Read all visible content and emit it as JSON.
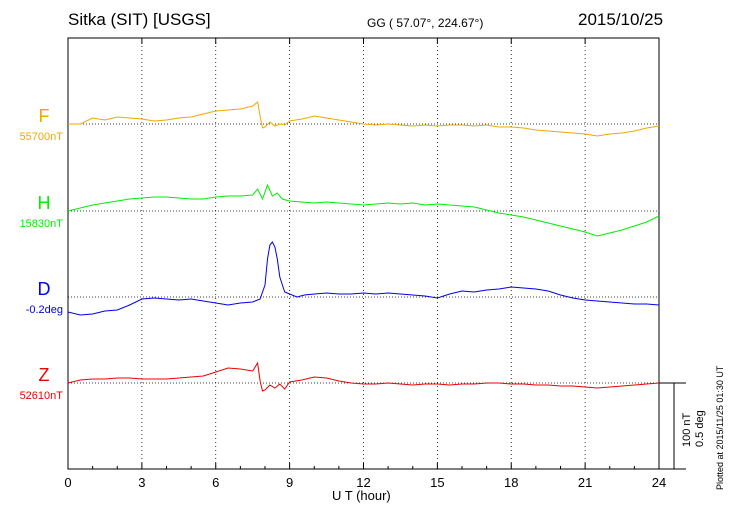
{
  "header": {
    "title": "Sitka (SIT)  [USGS]",
    "coords": "GG ( 57.07°, 224.67°)",
    "date": "2015/10/25"
  },
  "chart_data": {
    "type": "line",
    "xlabel": "U T (hour)",
    "xlim": [
      0,
      24
    ],
    "xticks": [
      0,
      3,
      6,
      9,
      12,
      15,
      18,
      21,
      24
    ],
    "grid": true,
    "scale_bar": {
      "nt_label": "100 nT",
      "deg_label": "0.5 deg"
    },
    "series": [
      {
        "name": "F",
        "baseline_label": "55700nT",
        "color": "#f0a800",
        "x": [
          0,
          0.5,
          1,
          1.5,
          2,
          2.5,
          3,
          3.5,
          4,
          4.5,
          5,
          5.5,
          6,
          6.5,
          7,
          7.5,
          7.7,
          7.8,
          7.9,
          8,
          8.2,
          8.4,
          8.6,
          8.8,
          9,
          9.5,
          10,
          10.5,
          11,
          11.5,
          12,
          12.5,
          13,
          13.5,
          14,
          14.5,
          15,
          15.5,
          16,
          16.5,
          17,
          17.5,
          18,
          18.5,
          19,
          19.5,
          20,
          20.5,
          21,
          21.5,
          22,
          22.5,
          23,
          23.5,
          24
        ],
        "y": [
          0,
          0,
          6,
          4,
          7,
          6,
          5,
          3,
          4,
          6,
          7,
          10,
          13,
          14,
          15,
          18,
          22,
          8,
          -4,
          -3,
          2,
          -2,
          0,
          -1,
          3,
          5,
          8,
          6,
          4,
          2,
          0,
          -1,
          0,
          -1,
          -2,
          -1,
          -2,
          -1,
          -1,
          -2,
          -1,
          -3,
          -3,
          -4,
          -6,
          -7,
          -8,
          -9,
          -10,
          -12,
          -10,
          -9,
          -7,
          -4,
          -2
        ]
      },
      {
        "name": "H",
        "baseline_label": "15830nT",
        "color": "#00ee00",
        "x": [
          0,
          0.5,
          1,
          1.5,
          2,
          2.5,
          3,
          3.5,
          4,
          4.5,
          5,
          5.5,
          6,
          6.5,
          7,
          7.5,
          7.7,
          7.9,
          8.1,
          8.3,
          8.5,
          8.7,
          9,
          9.5,
          10,
          10.5,
          11,
          11.5,
          12,
          12.5,
          13,
          13.5,
          14,
          14.5,
          15,
          15.5,
          16,
          16.5,
          17,
          17.5,
          18,
          18.5,
          19,
          19.5,
          20,
          20.5,
          21,
          21.5,
          22,
          22.5,
          23,
          23.5,
          24
        ],
        "y": [
          0,
          3,
          6,
          8,
          10,
          12,
          13,
          14,
          14,
          13,
          12,
          12,
          14,
          15,
          15,
          16,
          22,
          12,
          26,
          15,
          18,
          12,
          10,
          9,
          8,
          9,
          8,
          7,
          6,
          7,
          8,
          7,
          8,
          6,
          7,
          6,
          5,
          4,
          1,
          -2,
          -4,
          -6,
          -9,
          -12,
          -15,
          -18,
          -21,
          -25,
          -22,
          -19,
          -15,
          -11,
          -5
        ]
      },
      {
        "name": "D",
        "baseline_label": "-0.2deg",
        "color": "#0000ee",
        "x": [
          0,
          0.5,
          1,
          1.5,
          2,
          2.5,
          3,
          3.5,
          4,
          4.5,
          5,
          5.5,
          6,
          6.5,
          7,
          7.5,
          7.8,
          8,
          8.1,
          8.2,
          8.3,
          8.4,
          8.5,
          8.6,
          8.8,
          9,
          9.3,
          9.6,
          10,
          10.5,
          11,
          11.5,
          12,
          12.5,
          13,
          13.5,
          14,
          14.5,
          15,
          15.5,
          16,
          16.5,
          17,
          17.5,
          18,
          18.5,
          19,
          19.5,
          20,
          20.5,
          21,
          21.5,
          22,
          22.5,
          23,
          23.5,
          24
        ],
        "y": [
          -15,
          -18,
          -17,
          -14,
          -13,
          -8,
          -2,
          -1,
          -2,
          -3,
          -2,
          -4,
          -6,
          -8,
          -6,
          -5,
          -2,
          12,
          38,
          52,
          55,
          50,
          38,
          20,
          5,
          3,
          0,
          2,
          3,
          4,
          3,
          3,
          4,
          3,
          4,
          3,
          2,
          1,
          -1,
          3,
          6,
          5,
          7,
          8,
          10,
          9,
          8,
          6,
          2,
          -1,
          -3,
          -4,
          -5,
          -6,
          -7,
          -7,
          -8
        ]
      },
      {
        "name": "Z",
        "baseline_label": "52610nT",
        "color": "#ee0000",
        "x": [
          0,
          0.5,
          1,
          1.5,
          2,
          2.5,
          3,
          3.5,
          4,
          4.5,
          5,
          5.5,
          6,
          6.5,
          7,
          7.5,
          7.7,
          7.8,
          7.9,
          8,
          8.2,
          8.4,
          8.6,
          8.8,
          9,
          9.5,
          10,
          10.5,
          11,
          11.5,
          12,
          12.5,
          13,
          13.5,
          14,
          14.5,
          15,
          15.5,
          16,
          16.5,
          17,
          17.5,
          18,
          18.5,
          19,
          19.5,
          20,
          20.5,
          21,
          21.5,
          22,
          22.5,
          23,
          23.5,
          24
        ],
        "y": [
          0,
          3,
          4,
          4,
          5,
          5,
          4,
          4,
          4,
          5,
          6,
          7,
          11,
          15,
          14,
          12,
          20,
          2,
          -8,
          -7,
          -2,
          -5,
          -1,
          -6,
          1,
          3,
          6,
          5,
          2,
          0,
          -1,
          -1,
          0,
          -1,
          -2,
          -1,
          -1,
          -2,
          -1,
          -1,
          0,
          0,
          -1,
          -1,
          -2,
          -2,
          -3,
          -3,
          -4,
          -5,
          -4,
          -3,
          -2,
          -1,
          0
        ]
      }
    ]
  }
}
